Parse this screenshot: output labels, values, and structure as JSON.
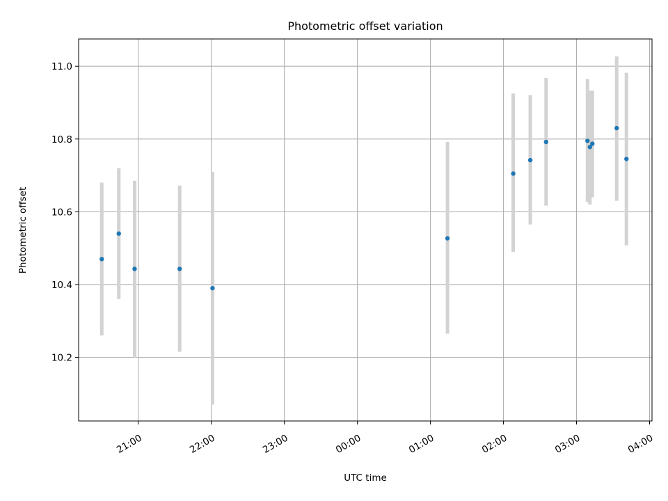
{
  "chart_data": {
    "type": "scatter",
    "title": "Photometric offset variation",
    "xlabel": "UTC time",
    "ylabel": "Photometric offset",
    "xlim": [
      "20:11",
      "04:02"
    ],
    "ylim": [
      10.025,
      11.075
    ],
    "x_ticks": [
      "21:00",
      "22:00",
      "23:00",
      "00:00",
      "01:00",
      "02:00",
      "03:00",
      "04:00"
    ],
    "y_ticks": [
      "10.2",
      "10.4",
      "10.6",
      "10.8",
      "11.0"
    ],
    "grid": true,
    "point_color": "#1f77b4",
    "errorbar_color": "#d3d3d3",
    "points": [
      {
        "time": "20:30",
        "y": 10.47,
        "err_low": 10.26,
        "err_high": 10.68
      },
      {
        "time": "20:44",
        "y": 10.54,
        "err_low": 10.36,
        "err_high": 10.72
      },
      {
        "time": "20:57",
        "y": 10.443,
        "err_low": 10.2,
        "err_high": 10.685
      },
      {
        "time": "21:34",
        "y": 10.443,
        "err_low": 10.215,
        "err_high": 10.672
      },
      {
        "time": "22:01",
        "y": 10.39,
        "err_low": 10.07,
        "err_high": 10.71
      },
      {
        "time": "01:14",
        "y": 10.527,
        "err_low": 10.265,
        "err_high": 10.792
      },
      {
        "time": "02:08",
        "y": 10.705,
        "err_low": 10.49,
        "err_high": 10.925
      },
      {
        "time": "02:22",
        "y": 10.742,
        "err_low": 10.565,
        "err_high": 10.92
      },
      {
        "time": "02:35",
        "y": 10.792,
        "err_low": 10.617,
        "err_high": 10.968
      },
      {
        "time": "03:09",
        "y": 10.795,
        "err_low": 10.627,
        "err_high": 10.965
      },
      {
        "time": "03:11",
        "y": 10.778,
        "err_low": 10.62,
        "err_high": 10.933
      },
      {
        "time": "03:13",
        "y": 10.787,
        "err_low": 10.64,
        "err_high": 10.933
      },
      {
        "time": "03:33",
        "y": 10.83,
        "err_low": 10.63,
        "err_high": 11.027
      },
      {
        "time": "03:41",
        "y": 10.745,
        "err_low": 10.508,
        "err_high": 10.982
      }
    ]
  }
}
